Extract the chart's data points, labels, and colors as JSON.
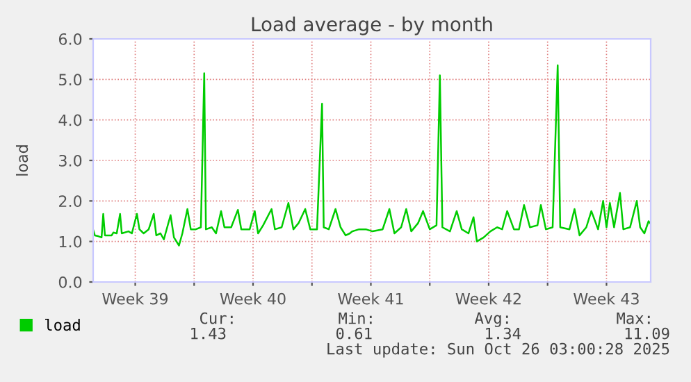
{
  "chart_data": {
    "type": "line",
    "title": "Load average - by month",
    "ylabel": "load",
    "x": [
      "2025-09-23T00:00",
      "2025-09-23T02:24",
      "2025-09-23T07:12",
      "2025-09-23T12:00",
      "2025-09-23T14:24",
      "2025-09-23T16:48",
      "2025-09-24T02:24",
      "2025-09-24T04:48",
      "2025-09-24T09:36",
      "2025-09-24T14:24",
      "2025-09-24T16:48",
      "2025-09-25T02:24",
      "2025-09-25T07:12",
      "2025-09-25T14:24",
      "2025-09-25T18:00",
      "2025-09-26T00:00",
      "2025-09-26T07:12",
      "2025-09-26T14:24",
      "2025-09-26T18:00",
      "2025-09-27T00:00",
      "2025-09-27T04:48",
      "2025-09-27T07:12",
      "2025-09-27T14:24",
      "2025-09-27T19:12",
      "2025-09-28T02:24",
      "2025-09-28T07:12",
      "2025-09-28T14:24",
      "2025-09-28T19:12",
      "2025-09-29T02:24",
      "2025-09-29T09:36",
      "2025-09-29T14:24",
      "2025-09-29T16:48",
      "2025-09-30T01:12",
      "2025-09-30T07:12",
      "2025-09-30T14:24",
      "2025-09-30T19:12",
      "2025-10-01T04:48",
      "2025-10-01T14:24",
      "2025-10-01T19:12",
      "2025-10-02T07:12",
      "2025-10-02T14:24",
      "2025-10-02T19:12",
      "2025-10-03T02:24",
      "2025-10-03T14:24",
      "2025-10-03T19:12",
      "2025-10-04T04:48",
      "2025-10-04T14:24",
      "2025-10-04T21:36",
      "2025-10-05T04:48",
      "2025-10-05T14:24",
      "2025-10-05T21:36",
      "2025-10-06T07:12",
      "2025-10-06T14:24",
      "2025-10-06T16:48",
      "2025-10-07T00:00",
      "2025-10-07T09:36",
      "2025-10-07T16:48",
      "2025-10-08T00:00",
      "2025-10-08T06:00",
      "2025-10-08T09:36",
      "2025-10-08T19:12",
      "2025-10-09T04:48",
      "2025-10-09T14:24",
      "2025-10-10T04:48",
      "2025-10-10T14:24",
      "2025-10-10T21:36",
      "2025-10-11T07:12",
      "2025-10-11T14:24",
      "2025-10-11T21:36",
      "2025-10-12T07:12",
      "2025-10-12T14:24",
      "2025-10-13T00:00",
      "2025-10-13T09:36",
      "2025-10-13T14:24",
      "2025-10-13T18:00",
      "2025-10-14T04:48",
      "2025-10-14T14:24",
      "2025-10-14T21:36",
      "2025-10-15T07:12",
      "2025-10-15T14:24",
      "2025-10-15T19:12",
      "2025-10-16T04:48",
      "2025-10-16T14:24",
      "2025-10-17T00:00",
      "2025-10-17T07:12",
      "2025-10-17T14:24",
      "2025-10-18T00:00",
      "2025-10-18T07:12",
      "2025-10-18T14:24",
      "2025-10-18T22:48",
      "2025-10-19T09:36",
      "2025-10-19T14:24",
      "2025-10-19T21:36",
      "2025-10-20T07:12",
      "2025-10-20T14:24",
      "2025-10-20T18:00",
      "2025-10-21T07:12",
      "2025-10-21T14:24",
      "2025-10-21T21:36",
      "2025-10-22T07:12",
      "2025-10-22T14:24",
      "2025-10-23T00:00",
      "2025-10-23T07:12",
      "2025-10-23T12:00",
      "2025-10-23T16:48",
      "2025-10-23T22:48",
      "2025-10-24T07:12",
      "2025-10-24T12:00",
      "2025-10-24T21:36",
      "2025-10-25T07:12",
      "2025-10-25T12:00",
      "2025-10-25T18:00",
      "2025-10-26T00:00",
      "2025-10-26T02:24"
    ],
    "series": [
      {
        "name": "load",
        "color": "#00cc00",
        "values": [
          1.29,
          1.15,
          1.13,
          1.1,
          1.68,
          1.15,
          1.15,
          1.22,
          1.2,
          1.68,
          1.2,
          1.25,
          1.2,
          1.68,
          1.3,
          1.2,
          1.3,
          1.68,
          1.15,
          1.2,
          1.05,
          1.2,
          1.65,
          1.1,
          0.9,
          1.2,
          1.8,
          1.3,
          1.3,
          1.35,
          5.15,
          1.3,
          1.35,
          1.2,
          1.75,
          1.35,
          1.35,
          1.78,
          1.3,
          1.3,
          1.75,
          1.2,
          1.4,
          1.8,
          1.3,
          1.35,
          1.95,
          1.3,
          1.45,
          1.8,
          1.3,
          1.3,
          4.4,
          1.35,
          1.3,
          1.8,
          1.35,
          1.15,
          1.2,
          1.25,
          1.3,
          1.3,
          1.25,
          1.3,
          1.8,
          1.2,
          1.35,
          1.8,
          1.25,
          1.45,
          1.75,
          1.3,
          1.4,
          5.1,
          1.35,
          1.25,
          1.75,
          1.3,
          1.2,
          1.6,
          1.0,
          1.1,
          1.25,
          1.35,
          1.3,
          1.75,
          1.3,
          1.3,
          1.9,
          1.35,
          1.4,
          1.9,
          1.3,
          1.35,
          5.35,
          1.35,
          1.3,
          1.8,
          1.15,
          1.35,
          1.75,
          1.3,
          2.0,
          1.35,
          1.95,
          1.35,
          2.2,
          1.3,
          1.35,
          2.0,
          1.35,
          1.2,
          1.5,
          1.45
        ]
      }
    ],
    "xlim": [
      "2025-09-23T00:00",
      "2025-10-26T03:00"
    ],
    "xticks": [
      {
        "value": "2025-09-25T12:00",
        "label": "Week 39"
      },
      {
        "value": "2025-09-29",
        "label": null
      },
      {
        "value": "2025-10-02T12:00",
        "label": "Week 40"
      },
      {
        "value": "2025-10-06",
        "label": null
      },
      {
        "value": "2025-10-09T12:00",
        "label": "Week 41"
      },
      {
        "value": "2025-10-13",
        "label": null
      },
      {
        "value": "2025-10-16T12:00",
        "label": "Week 42"
      },
      {
        "value": "2025-10-20",
        "label": null
      },
      {
        "value": "2025-10-23T12:00",
        "label": "Week 43"
      }
    ],
    "ylim": [
      0,
      6
    ],
    "yticks": [
      {
        "value": 0,
        "label": "0.0"
      },
      {
        "value": 1,
        "label": "1.0"
      },
      {
        "value": 2,
        "label": "2.0"
      },
      {
        "value": 3,
        "label": "3.0"
      },
      {
        "value": 4,
        "label": "4.0"
      },
      {
        "value": 5,
        "label": "5.0"
      },
      {
        "value": 6,
        "label": "6.0"
      }
    ],
    "grid": true,
    "legend": "bottom left",
    "marker": "none",
    "line_style": "solid",
    "annotations": [
      "Cur:",
      "Min:",
      "Avg:",
      "Max:",
      "1.43",
      "0.61",
      "1.34",
      "11.09",
      "Last update: Sun Oct 26 03:00:28 2025"
    ]
  }
}
